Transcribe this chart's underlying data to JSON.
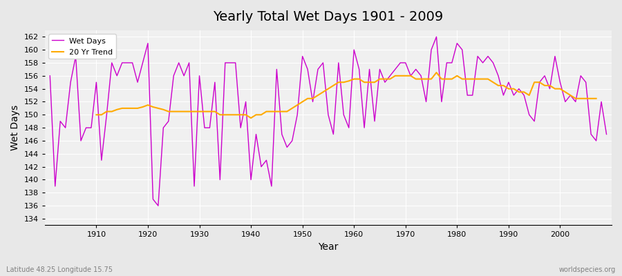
{
  "title": "Yearly Total Wet Days 1901 - 2009",
  "xlabel": "Year",
  "ylabel": "Wet Days",
  "lat_lon_label": "Latitude 48.25 Longitude 15.75",
  "watermark": "worldspecies.org",
  "wet_days_color": "#cc00cc",
  "trend_color": "#ffaa00",
  "background_color": "#e8e8e8",
  "plot_bg_color": "#f0f0f0",
  "ylim": [
    133,
    163
  ],
  "yticks": [
    134,
    136,
    138,
    140,
    142,
    144,
    146,
    148,
    150,
    152,
    154,
    156,
    158,
    160,
    162
  ],
  "years": [
    1901,
    1902,
    1903,
    1904,
    1905,
    1906,
    1907,
    1908,
    1909,
    1910,
    1911,
    1912,
    1913,
    1914,
    1915,
    1916,
    1917,
    1918,
    1919,
    1920,
    1921,
    1922,
    1923,
    1924,
    1925,
    1926,
    1927,
    1928,
    1929,
    1930,
    1931,
    1932,
    1933,
    1934,
    1935,
    1936,
    1937,
    1938,
    1939,
    1940,
    1941,
    1942,
    1943,
    1944,
    1945,
    1946,
    1947,
    1948,
    1949,
    1950,
    1951,
    1952,
    1953,
    1954,
    1955,
    1956,
    1957,
    1958,
    1959,
    1960,
    1961,
    1962,
    1963,
    1964,
    1965,
    1966,
    1967,
    1968,
    1969,
    1970,
    1971,
    1972,
    1973,
    1974,
    1975,
    1976,
    1977,
    1978,
    1979,
    1980,
    1981,
    1982,
    1983,
    1984,
    1985,
    1986,
    1987,
    1988,
    1989,
    1990,
    1991,
    1992,
    1993,
    1994,
    1995,
    1996,
    1997,
    1998,
    1999,
    2000,
    2001,
    2002,
    2003,
    2004,
    2005,
    2006,
    2007,
    2008,
    2009
  ],
  "wet_days": [
    156,
    139,
    149,
    148,
    155,
    159,
    146,
    148,
    148,
    155,
    143,
    150,
    158,
    156,
    158,
    158,
    158,
    155,
    158,
    161,
    137,
    136,
    148,
    149,
    156,
    158,
    156,
    158,
    139,
    156,
    148,
    148,
    155,
    140,
    158,
    158,
    158,
    148,
    152,
    140,
    147,
    142,
    143,
    139,
    157,
    147,
    145,
    146,
    150,
    159,
    157,
    152,
    157,
    158,
    150,
    147,
    158,
    150,
    148,
    160,
    157,
    148,
    157,
    149,
    157,
    155,
    156,
    157,
    158,
    158,
    156,
    157,
    156,
    152,
    160,
    162,
    152,
    158,
    158,
    161,
    160,
    153,
    153,
    159,
    158,
    159,
    158,
    156,
    153,
    155,
    153,
    154,
    153,
    150,
    149,
    155,
    156,
    154,
    159,
    155,
    152,
    153,
    152,
    156,
    155,
    147,
    146,
    152,
    147
  ],
  "trend": [
    null,
    null,
    null,
    null,
    null,
    null,
    null,
    null,
    null,
    150.0,
    150.0,
    150.5,
    150.5,
    150.8,
    151.0,
    151.0,
    151.0,
    151.0,
    151.2,
    151.5,
    151.2,
    151.0,
    150.8,
    150.5,
    150.5,
    150.5,
    150.5,
    150.5,
    150.5,
    150.5,
    150.5,
    150.5,
    150.5,
    150.0,
    150.0,
    150.0,
    150.0,
    150.0,
    150.0,
    149.5,
    150.0,
    150.0,
    150.5,
    150.5,
    150.5,
    150.5,
    150.5,
    151.0,
    151.5,
    152.0,
    152.5,
    152.5,
    153.0,
    153.5,
    154.0,
    154.5,
    155.0,
    155.0,
    155.2,
    155.5,
    155.5,
    155.0,
    155.0,
    155.0,
    155.5,
    155.5,
    155.5,
    156.0,
    156.0,
    156.0,
    156.0,
    155.5,
    155.5,
    155.5,
    155.5,
    156.5,
    155.5,
    155.5,
    155.5,
    156.0,
    155.5,
    155.5,
    155.5,
    155.5,
    155.5,
    155.5,
    155.0,
    154.5,
    154.5,
    154.0,
    154.0,
    153.5,
    153.5,
    153.0,
    155.0,
    155.0,
    154.5,
    154.5,
    154.0,
    154.0,
    153.5,
    153.0,
    152.5,
    152.5,
    152.5,
    152.5,
    152.5
  ]
}
